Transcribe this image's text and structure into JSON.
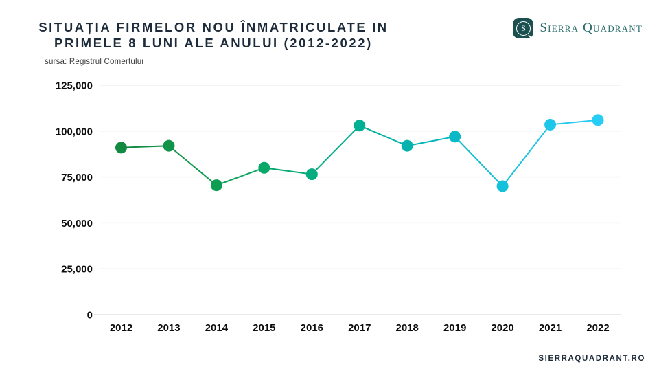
{
  "header": {
    "title_line1": "SITUAȚIA FIRMELOR NOU ÎNMATRICULATE IN",
    "title_line2": "PRIMELE 8 LUNI ALE ANULUI (2012-2022)",
    "source": "sursa: Registrul Comertului"
  },
  "logo": {
    "brand": "Sierra Quadrant",
    "icon_letter": "S"
  },
  "footer": {
    "website": "SIERRAQUADRANT.RO"
  },
  "colors": {
    "title_navy": "#1e2b3a",
    "logo_teal": "#2b6c6c",
    "logo_icon_bg": "#1b4f50",
    "gridline": "#efefef",
    "baseline": "#e2e2e2",
    "tick_text": "#0d0d0d",
    "gradient_start": "#128a3f",
    "gradient_end": "#29ccf4"
  },
  "chart_data": {
    "type": "line",
    "title": "Situația firmelor nou înmatriculate in primele 8 luni ale anului (2012-2022)",
    "subtitle_source": "sursa: Registrul Comertului",
    "categories": [
      "2012",
      "2013",
      "2014",
      "2015",
      "2016",
      "2017",
      "2018",
      "2019",
      "2020",
      "2021",
      "2022"
    ],
    "values": [
      91000,
      92000,
      70500,
      80000,
      76500,
      103000,
      92000,
      97000,
      70000,
      103500,
      106000
    ],
    "point_colors": [
      "#128a3f",
      "#109448",
      "#0d9e54",
      "#09a768",
      "#05ac7f",
      "#02b096",
      "#04b3ae",
      "#0bb9c6",
      "#14c0da",
      "#1ec6e9",
      "#29ccf4"
    ],
    "y_ticks": [
      0,
      25000,
      50000,
      75000,
      100000,
      125000
    ],
    "ylim": [
      0,
      125000
    ],
    "xlabel": "",
    "ylabel": "",
    "grid": "horizontal",
    "legend": "none",
    "marker_radius": 8.5
  }
}
